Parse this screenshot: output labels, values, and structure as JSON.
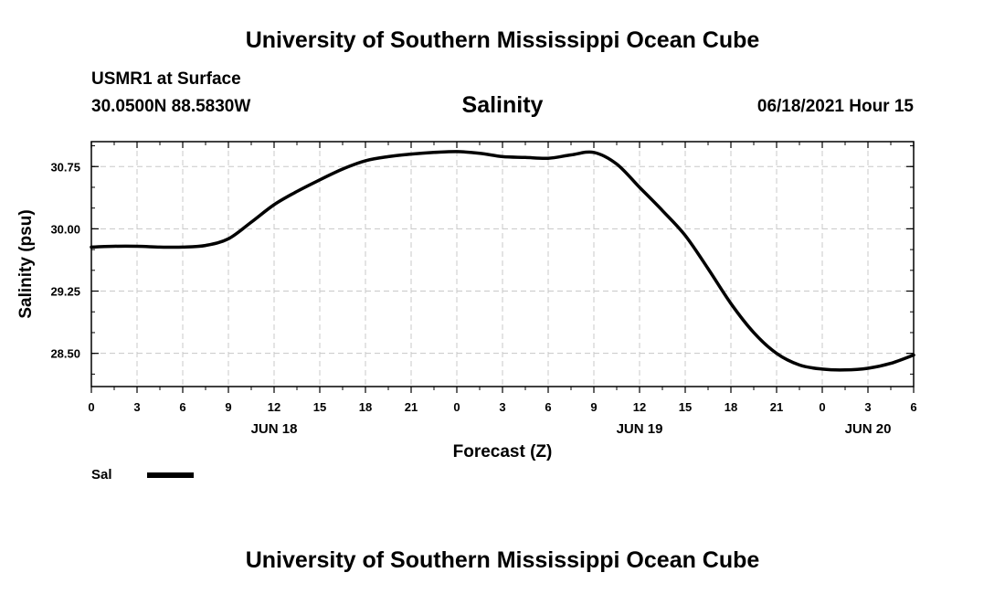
{
  "header": {
    "title_top": "University of Southern Mississippi Ocean Cube",
    "station": "USMR1 at Surface",
    "coords": "30.0500N  88.5830W",
    "variable": "Salinity",
    "datetime": "06/18/2021 Hour 15"
  },
  "footer": {
    "title_bottom": "University of Southern Mississippi Ocean Cube"
  },
  "legend": {
    "label": "Sal",
    "color": "#000000"
  },
  "chart_data": {
    "type": "line",
    "title": "Salinity",
    "xlabel": "Forecast (Z)",
    "ylabel": "Salinity (psu)",
    "x_unit": "forecast hours from 2021-06-18 00Z",
    "xlim": [
      0,
      54
    ],
    "ylim": [
      28.1,
      31.05
    ],
    "x_ticks": [
      0,
      3,
      6,
      9,
      12,
      15,
      18,
      21,
      24,
      27,
      30,
      33,
      36,
      39,
      42,
      45,
      48,
      51,
      54
    ],
    "x_tick_labels": [
      "0",
      "3",
      "6",
      "9",
      "12",
      "15",
      "18",
      "21",
      "0",
      "3",
      "6",
      "9",
      "12",
      "15",
      "18",
      "21",
      "0",
      "3",
      "6"
    ],
    "date_labels": [
      {
        "x": 12,
        "label": "JUN 18"
      },
      {
        "x": 36,
        "label": "JUN 19"
      },
      {
        "x": 51,
        "label": "JUN 20"
      }
    ],
    "y_ticks": [
      28.5,
      29.25,
      30.0,
      30.75
    ],
    "y_tick_labels": [
      "28.50",
      "29.25",
      "30.00",
      "30.75"
    ],
    "grid": true,
    "series": [
      {
        "name": "Sal",
        "color": "#000000",
        "x": [
          0,
          1.5,
          3,
          4.5,
          6,
          7.5,
          9,
          10.5,
          12,
          13.5,
          15,
          16.5,
          18,
          19.5,
          21,
          22.5,
          24,
          25.5,
          27,
          28.5,
          30,
          31.5,
          33,
          34.5,
          36,
          37.5,
          39,
          40.5,
          42,
          43.5,
          45,
          46.5,
          48,
          49.5,
          51,
          52.5,
          54
        ],
        "y": [
          29.78,
          29.79,
          29.79,
          29.78,
          29.78,
          29.8,
          29.88,
          30.08,
          30.29,
          30.45,
          30.59,
          30.72,
          30.82,
          30.87,
          30.9,
          30.92,
          30.93,
          30.91,
          30.87,
          30.86,
          30.85,
          30.89,
          30.92,
          30.78,
          30.5,
          30.22,
          29.92,
          29.52,
          29.1,
          28.75,
          28.5,
          28.36,
          28.31,
          28.3,
          28.32,
          28.38,
          28.48
        ]
      }
    ]
  }
}
